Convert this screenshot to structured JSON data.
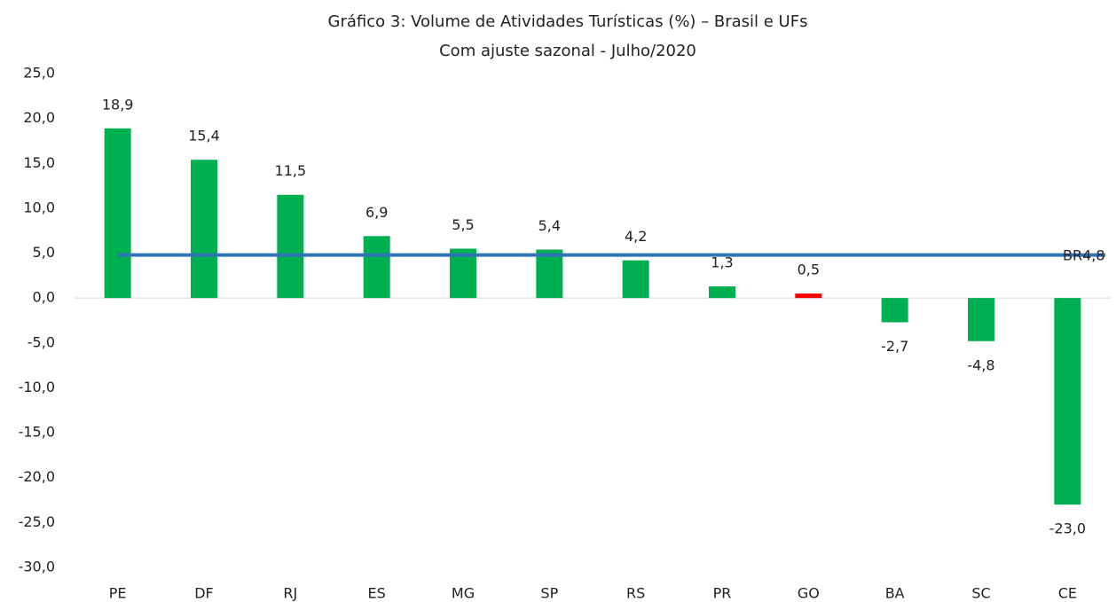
{
  "chart_data": {
    "type": "bar",
    "title": "Gráfico 3: Volume de Atividades Turísticas (%) – Brasil e UFs",
    "subtitle": "Com  ajuste sazonal - Julho/2020",
    "categories": [
      "PE",
      "DF",
      "RJ",
      "ES",
      "MG",
      "SP",
      "RS",
      "PR",
      "GO",
      "BA",
      "SC",
      "CE"
    ],
    "values": [
      18.9,
      15.4,
      11.5,
      6.9,
      5.5,
      5.4,
      4.2,
      1.3,
      0.5,
      -2.7,
      -4.8,
      -23.0
    ],
    "value_labels": [
      "18,9",
      "15,4",
      "11,5",
      "6,9",
      "5,5",
      "5,4",
      "4,2",
      "1,3",
      "0,5",
      "-2,7",
      "-4,8",
      "-23,0"
    ],
    "colors": [
      "#00b050",
      "#00b050",
      "#00b050",
      "#00b050",
      "#00b050",
      "#00b050",
      "#00b050",
      "#00b050",
      "#ff0000",
      "#00b050",
      "#00b050",
      "#00b050"
    ],
    "reference_line": {
      "name": "BR",
      "value": 4.8,
      "value_label": "4,8",
      "color": "#2e75b6"
    },
    "ylim": [
      -30,
      25
    ],
    "yticks": [
      {
        "value": 25,
        "label": "25,0"
      },
      {
        "value": 20,
        "label": "20,0"
      },
      {
        "value": 15,
        "label": "15,0"
      },
      {
        "value": 10,
        "label": "10,0"
      },
      {
        "value": 5,
        "label": "5,0"
      },
      {
        "value": 0,
        "label": "0,0"
      },
      {
        "value": -5,
        "label": "-5,0"
      },
      {
        "value": -10,
        "label": "-10,0"
      },
      {
        "value": -15,
        "label": "-15,0"
      },
      {
        "value": -20,
        "label": "-20,0"
      },
      {
        "value": -25,
        "label": "-25,0"
      },
      {
        "value": -30,
        "label": "-30,0"
      }
    ],
    "grid": false
  }
}
